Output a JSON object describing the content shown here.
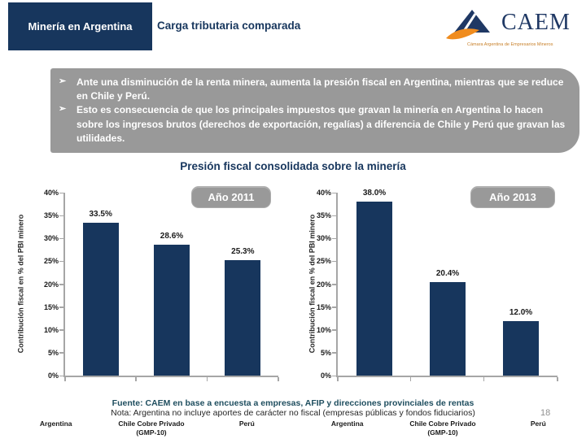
{
  "header": {
    "tab_title": "Minería en Argentina",
    "page_title": "Carga tributaria comparada",
    "logo": {
      "text": "CAEM",
      "tagline": "Cámara Argentina de Empresarios Mineros"
    }
  },
  "callout": {
    "bullet_glyph": "➢",
    "bullets": [
      "Ante una disminución de la renta minera, aumenta la presión fiscal en Argentina, mientras que se reduce en Chile y Perú.",
      "Esto es consecuencia de que los principales impuestos que gravan la minería en Argentina lo hacen sobre los ingresos brutos (derechos de exportación, regalías) a diferencia de Chile y Perú que gravan las utilidades."
    ]
  },
  "section_title": "Presión fiscal consolidada sobre la minería",
  "chart_data": [
    {
      "type": "bar",
      "title": "Año 2011",
      "categories": [
        "Argentina",
        "Chile Cobre Privado\n(GMP-10)",
        "Perú"
      ],
      "values": [
        33.5,
        28.6,
        25.3
      ],
      "data_labels": [
        "33.5%",
        "28.6%",
        "25.3%"
      ],
      "xlabel": "",
      "ylabel": "Contribución fiscal en % del PBI minero",
      "ylim": [
        0,
        40
      ],
      "ytick_labels": [
        "0%",
        "5%",
        "10%",
        "15%",
        "20%",
        "25%",
        "30%",
        "35%",
        "40%"
      ],
      "grid": "off",
      "legend": "none",
      "bar_color": "#17365D"
    },
    {
      "type": "bar",
      "title": "Año 2013",
      "categories": [
        "Argentina",
        "Chile Cobre Privado\n(GMP-10)",
        "Perú"
      ],
      "values": [
        38.0,
        20.4,
        12.0
      ],
      "data_labels": [
        "38.0%",
        "20.4%",
        "12.0%"
      ],
      "xlabel": "",
      "ylabel": "Contribución fiscal en % del PBI minero",
      "ylim": [
        0,
        40
      ],
      "ytick_labels": [
        "0%",
        "5%",
        "10%",
        "15%",
        "20%",
        "25%",
        "30%",
        "35%",
        "40%"
      ],
      "grid": "off",
      "legend": "none",
      "bar_color": "#17365D"
    }
  ],
  "footer": {
    "source": "Fuente: CAEM en base a encuesta a empresas, AFIP y direcciones provinciales de rentas",
    "note": "Nota: Argentina no incluye aportes de carácter no fiscal (empresas públicas y fondos fiduciarios)",
    "page_number": "18"
  },
  "colors": {
    "navy": "#17365D",
    "callout_gray": "#999999",
    "axis_gray": "#A6A6A6",
    "logo_orange": "#F08C1E",
    "source_teal": "#1F4E5F"
  }
}
